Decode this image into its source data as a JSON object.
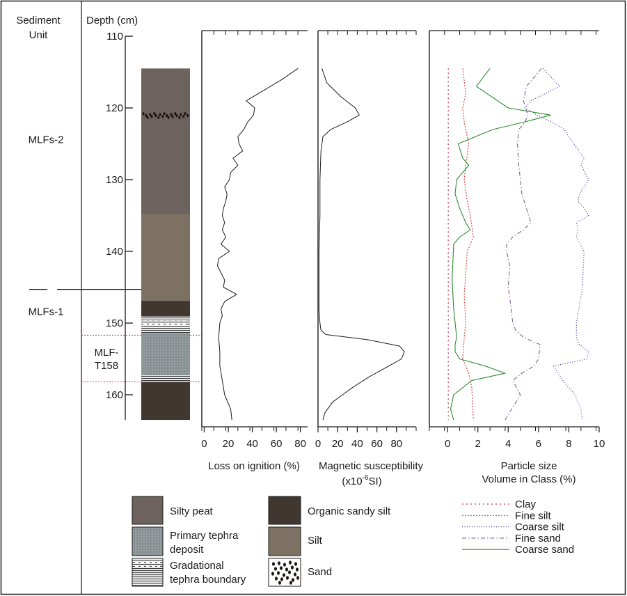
{
  "chart_data": {
    "type": "line",
    "header": {
      "unit_col_line1": "Sediment",
      "unit_col_line2": "Unit",
      "depth_label": "Depth (cm)"
    },
    "depth_axis": {
      "range": [
        110,
        163.5
      ],
      "ticks": [
        110,
        120,
        130,
        140,
        150,
        160
      ]
    },
    "units": [
      {
        "label": "MLFs-2",
        "depth": 124.5
      },
      {
        "label": "MLFs-1",
        "depth": 148.5
      }
    ],
    "unit_boundary_depth": 145.3,
    "tephra_label_line1": "MLF-",
    "tephra_label_line2": "T158",
    "tephra_limits": [
      151.7,
      158.2
    ],
    "lithology": [
      {
        "type": "silty_peat",
        "top": 114.5,
        "bottom": 134.8
      },
      {
        "type": "sand",
        "top": 120.6,
        "bottom": 121.6
      },
      {
        "type": "silt",
        "top": 134.8,
        "bottom": 146.9
      },
      {
        "type": "organic_sandy_silt",
        "top": 146.9,
        "bottom": 149.1
      },
      {
        "type": "gradational",
        "top": 149.1,
        "bottom": 151.4
      },
      {
        "type": "primary_tephra",
        "top": 151.4,
        "bottom": 157.3
      },
      {
        "type": "gradational",
        "top": 157.3,
        "bottom": 158.2
      },
      {
        "type": "organic_sandy_silt",
        "top": 158.2,
        "bottom": 163.5
      }
    ],
    "loss_on_ignition": {
      "xlabel": "Loss on ignition (%)",
      "xlim": [
        0,
        80
      ],
      "ticks": [
        0,
        20,
        40,
        60,
        80
      ],
      "depth": [
        114.5,
        116,
        117.5,
        119,
        120,
        121,
        122,
        123,
        124,
        125,
        126,
        127,
        128,
        129,
        130,
        131,
        132,
        133,
        134,
        135,
        136,
        137,
        138,
        139,
        140,
        141,
        142,
        143,
        144,
        145,
        146,
        147,
        148,
        149,
        150,
        152,
        154,
        156,
        158,
        160,
        162,
        163.5
      ],
      "values": [
        78,
        65,
        50,
        35,
        42,
        41,
        36,
        33,
        28,
        29,
        32,
        24,
        28,
        22,
        21,
        17,
        19,
        18,
        16,
        15,
        17,
        15,
        18,
        14,
        21,
        12,
        11,
        14,
        17,
        16,
        27,
        17,
        14,
        15,
        13,
        12,
        13,
        13,
        15,
        17,
        22,
        23
      ]
    },
    "magnetic_susceptibility": {
      "xlabel": "Magnetic susceptibility",
      "xlabel_line2": "(x10",
      "xlabel_sup": "-6",
      "xlabel_end": "SI)",
      "xlim": [
        0,
        100
      ],
      "ticks": [
        0,
        20,
        40,
        60,
        80
      ],
      "depth": [
        114.5,
        116.5,
        118.5,
        120,
        121,
        122,
        123,
        124,
        126,
        130,
        135,
        140,
        145,
        148,
        150,
        151,
        151.6,
        152.3,
        153.2,
        154,
        155,
        156,
        157.5,
        159,
        160,
        161,
        162.5,
        163.5
      ],
      "values": [
        4,
        9,
        24,
        38,
        42,
        29,
        13,
        5,
        3,
        2,
        2,
        1,
        1,
        1,
        2,
        3,
        8,
        50,
        83,
        88,
        85,
        72,
        52,
        35,
        25,
        15,
        7,
        5
      ]
    },
    "particle_size": {
      "xlabel_line1": "Particle size",
      "xlabel_line2": "Volume in Class (%)",
      "xlim": [
        -1,
        10
      ],
      "ticks": [
        0,
        2,
        4,
        6,
        8,
        10
      ],
      "series": [
        {
          "name": "Clay",
          "color": "#cc3355",
          "dash": "2 4",
          "depth": [
            114.5,
            130,
            145,
            155,
            163.5
          ],
          "values": [
            0.05,
            0.05,
            0.05,
            0.05,
            0.05
          ]
        },
        {
          "name": "Fine silt",
          "color": "#dd4444",
          "dash": "2 2",
          "depth": [
            114.5,
            118,
            120,
            122,
            125,
            128,
            130,
            133,
            135,
            138,
            140,
            143,
            146,
            150,
            152,
            155,
            157,
            159,
            163.5
          ],
          "values": [
            1.0,
            1.2,
            1.0,
            1.1,
            1.4,
            1.2,
            1.1,
            1.3,
            1.5,
            1.7,
            1.3,
            1.2,
            1.1,
            1.2,
            1.1,
            1.0,
            1.4,
            1.6,
            1.7
          ]
        },
        {
          "name": "Coarse silt",
          "color": "#333399",
          "dash": "1 2.5",
          "depth": [
            114.5,
            117,
            119,
            120,
            121,
            122,
            123,
            124,
            127,
            128,
            130,
            132,
            133,
            134,
            135,
            136,
            137,
            138,
            140,
            145,
            150,
            152,
            153,
            154,
            155,
            156,
            158,
            160,
            162,
            163.5
          ],
          "values": [
            6.3,
            7.4,
            5.5,
            5.1,
            5.9,
            6.9,
            7.7,
            8.0,
            9.0,
            8.8,
            9.3,
            8.7,
            8.6,
            9.0,
            9.3,
            8.5,
            8.6,
            8.5,
            9.0,
            8.9,
            8.5,
            8.5,
            8.7,
            9.3,
            9.2,
            7.0,
            7.6,
            8.4,
            8.8,
            8.9
          ]
        },
        {
          "name": "Fine sand",
          "color": "#8a6a9e",
          "dash": "6 3 1.5 3",
          "depth": [
            114.5,
            117,
            119,
            121,
            122,
            123,
            125,
            128,
            130,
            132,
            134,
            136,
            137,
            138,
            139,
            140,
            142,
            145,
            148,
            150,
            151,
            152,
            153,
            155,
            156,
            157,
            158,
            160,
            163.5
          ],
          "values": [
            6.2,
            5.2,
            5.0,
            5.3,
            5.1,
            4.7,
            4.6,
            4.7,
            4.8,
            4.9,
            5.2,
            5.5,
            5.0,
            4.3,
            3.9,
            3.9,
            4.1,
            4.0,
            4.2,
            4.3,
            4.5,
            5.0,
            6.1,
            6.0,
            5.7,
            4.9,
            4.3,
            4.8,
            3.8
          ]
        },
        {
          "name": "Coarse sand",
          "color": "#2e8b2e",
          "dash": "",
          "depth": [
            114.5,
            117,
            120,
            121,
            122,
            123,
            125,
            127,
            128,
            130,
            132,
            134,
            136,
            137,
            138,
            139,
            144,
            148,
            152,
            153,
            154,
            155,
            156,
            157,
            158,
            160,
            162,
            163.5
          ],
          "values": [
            2.8,
            1.9,
            4.0,
            6.8,
            5.0,
            3.0,
            0.7,
            1.0,
            1.4,
            0.6,
            0.5,
            0.8,
            1.2,
            1.5,
            0.8,
            0.4,
            0.3,
            0.4,
            0.6,
            0.5,
            0.5,
            0.8,
            2.5,
            3.8,
            1.6,
            0.4,
            0.2,
            0.4
          ]
        }
      ]
    },
    "legend": {
      "lithology": [
        {
          "key": "silty_peat",
          "label_lines": [
            "Silty peat"
          ]
        },
        {
          "key": "primary_tephra",
          "label_lines": [
            "Primary tephra",
            "deposit"
          ]
        },
        {
          "key": "gradational",
          "label_lines": [
            "Gradational",
            "tephra boundary"
          ]
        },
        {
          "key": "organic_sandy_silt",
          "label_lines": [
            "Organic sandy silt"
          ]
        },
        {
          "key": "silt",
          "label_lines": [
            "Silt"
          ]
        },
        {
          "key": "sand",
          "label_lines": [
            "Sand"
          ]
        }
      ],
      "particle_series": [
        "Clay",
        "Fine silt",
        "Coarse silt",
        "Fine sand",
        "Coarse sand"
      ]
    },
    "colors": {
      "silty_peat": "#6e625f",
      "silt": "#7c7162",
      "organic_sandy_silt": "#403830",
      "tephra": "#8f9699",
      "ink": "#1a1a1a",
      "boundary_red": "#e04848"
    }
  }
}
